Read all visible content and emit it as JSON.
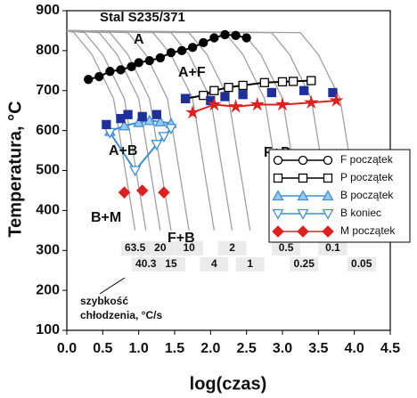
{
  "chart_data": {
    "type": "line",
    "title": "Stal S235/371",
    "x_label": "log(czas)",
    "y_label": "Temperatura, °C",
    "xlim": [
      0,
      4.5
    ],
    "ylim": [
      100,
      900
    ],
    "xticks": [
      {
        "value": 0,
        "label": "0.0"
      },
      0.5,
      {
        "value": 1,
        "label": "1.0"
      },
      1.5,
      {
        "value": 2,
        "label": "2.0"
      },
      2.5,
      {
        "value": 3,
        "label": "3.0"
      },
      3.5,
      {
        "value": 4,
        "label": "4.0"
      },
      4.5
    ],
    "yticks": [
      100,
      200,
      300,
      400,
      500,
      600,
      700,
      800,
      900
    ],
    "annotations": [
      "A",
      "A+F",
      "A+B",
      "B+M",
      "F+B",
      "F+P"
    ],
    "cooling": {
      "caption": [
        "szybkość",
        "chłodzenia, °C/s"
      ],
      "color": "#a0a0a0",
      "curves": [
        {
          "rate": 63.5,
          "x": [
            0,
            0.1,
            0.35,
            0.65,
            0.95
          ],
          "y": [
            850,
            845,
            790,
            680,
            350
          ]
        },
        {
          "rate": 40.3,
          "x": [
            0,
            0.25,
            0.5,
            0.8,
            1.1
          ],
          "y": [
            850,
            845,
            790,
            680,
            350
          ]
        },
        {
          "rate": 20,
          "x": [
            0,
            0.45,
            0.7,
            1.0,
            1.3
          ],
          "y": [
            850,
            845,
            790,
            680,
            350
          ]
        },
        {
          "rate": 15,
          "x": [
            0,
            0.6,
            0.85,
            1.15,
            1.45
          ],
          "y": [
            850,
            845,
            790,
            680,
            350
          ]
        },
        {
          "rate": 10,
          "x": [
            0,
            0.85,
            1.1,
            1.4,
            1.7
          ],
          "y": [
            850,
            845,
            790,
            680,
            350
          ]
        },
        {
          "rate": 4,
          "x": [
            0,
            1.2,
            1.45,
            1.75,
            2.05
          ],
          "y": [
            850,
            845,
            790,
            680,
            350
          ]
        },
        {
          "rate": 2,
          "x": [
            0,
            1.45,
            1.7,
            2.0,
            2.3
          ],
          "y": [
            850,
            845,
            790,
            680,
            350
          ]
        },
        {
          "rate": 1,
          "x": [
            0,
            1.7,
            1.95,
            2.25,
            2.55
          ],
          "y": [
            850,
            845,
            790,
            680,
            350
          ]
        },
        {
          "rate": 0.5,
          "x": [
            0,
            2.2,
            2.45,
            2.75,
            3.05
          ],
          "y": [
            850,
            845,
            790,
            680,
            350
          ]
        },
        {
          "rate": 0.25,
          "x": [
            0,
            2.45,
            2.7,
            3.0,
            3.3
          ],
          "y": [
            850,
            845,
            790,
            680,
            350
          ]
        },
        {
          "rate": 0.1,
          "x": [
            0,
            2.85,
            3.1,
            3.4,
            3.7
          ],
          "y": [
            850,
            845,
            790,
            680,
            350
          ]
        },
        {
          "rate": 0.05,
          "x": [
            0,
            3.25,
            3.5,
            3.8,
            4.1
          ],
          "y": [
            850,
            845,
            790,
            680,
            350
          ]
        }
      ]
    },
    "series": [
      {
        "name": "F początek",
        "color": "#000000",
        "fill": "#000000",
        "marker": "circle",
        "line": true,
        "x": [
          0.3,
          0.45,
          0.6,
          0.75,
          0.9,
          1.0,
          1.15,
          1.3,
          1.45,
          1.6,
          1.75,
          1.9,
          2.05,
          2.2,
          2.35,
          2.5
        ],
        "values": [
          728,
          735,
          748,
          752,
          760,
          770,
          775,
          782,
          795,
          800,
          808,
          820,
          832,
          840,
          838,
          832
        ]
      },
      {
        "name": "P początek",
        "color": "#000000",
        "fill": "#ffffff",
        "marker": "square",
        "line": true,
        "x": [
          1.65,
          1.9,
          2.05,
          2.25,
          2.45,
          2.75,
          3.0,
          3.15,
          3.4
        ],
        "values": [
          680,
          688,
          700,
          708,
          713,
          720,
          722,
          723,
          725
        ]
      },
      {
        "name": "B początek",
        "color": "#3a8fd8",
        "fill": "#9cc8ee",
        "marker": "tri-up",
        "line": true,
        "x": [
          0.6,
          0.8,
          1.0,
          1.15,
          1.3,
          1.45
        ],
        "values": [
          598,
          612,
          620,
          625,
          622,
          618
        ]
      },
      {
        "name": "B koniec",
        "color": "#3a8fd8",
        "fill": "#ffffff",
        "marker": "tri-down",
        "line": true,
        "x": [
          0.6,
          0.95,
          1.25,
          1.35,
          1.45
        ],
        "values": [
          595,
          500,
          565,
          585,
          605
        ]
      },
      {
        "name": "M początek",
        "color": "#e02020",
        "fill": "#e02020",
        "marker": "diamond",
        "line": false,
        "x": [
          0.8,
          1.05,
          1.35
        ],
        "values": [
          445,
          450,
          445
        ]
      },
      {
        "color": "#1f2f9a",
        "fill": "#1f2f9a",
        "marker": "square",
        "line": false,
        "x": [
          0.55,
          0.75,
          0.85,
          1.05,
          1.25,
          1.65,
          2.0,
          2.2,
          2.45,
          2.85,
          3.3,
          3.7
        ],
        "values": [
          615,
          630,
          640,
          635,
          640,
          680,
          675,
          685,
          690,
          695,
          700,
          695
        ]
      },
      {
        "color": "#e02020",
        "fill": "#e02020",
        "marker": "star",
        "line": true,
        "x": [
          1.75,
          2.05,
          2.35,
          2.65,
          3.0,
          3.4,
          3.75
        ],
        "values": [
          645,
          665,
          660,
          665,
          665,
          670,
          675
        ]
      }
    ]
  }
}
